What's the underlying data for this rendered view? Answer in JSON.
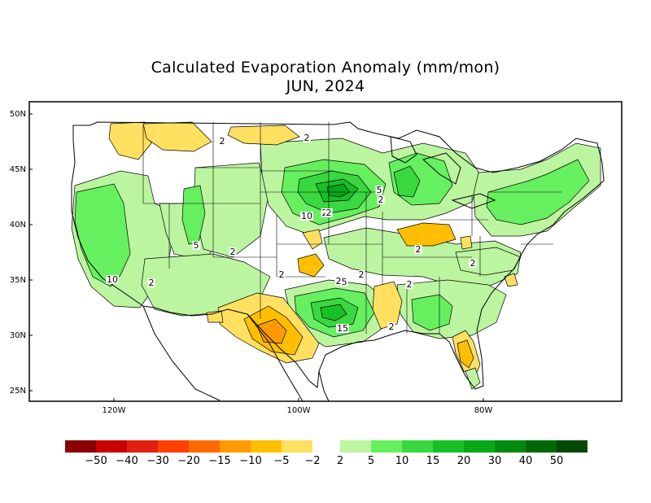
{
  "title": {
    "line1": "Calculated Evaporation Anomaly (mm/mon)",
    "line2": "JUN, 2024"
  },
  "map": {
    "lat_labels": [
      "50N",
      "45N",
      "40N",
      "35N",
      "30N",
      "25N"
    ],
    "lon_labels": [
      "120W",
      "100W",
      "80W"
    ],
    "contour_labels": [
      "2",
      "2",
      "5",
      "2",
      "10",
      "2",
      "5",
      "2",
      "2",
      "10",
      "2",
      "2",
      "2",
      "5",
      "2",
      "15",
      "2",
      "2",
      "2",
      "2",
      "5"
    ]
  },
  "colorbar": {
    "negative": {
      "colors": [
        "#8b0000",
        "#c80000",
        "#e02010",
        "#ff4000",
        "#ff6a00",
        "#ff9a00",
        "#ffbf00",
        "#ffe060"
      ],
      "labels": [
        "−50",
        "−40",
        "−30",
        "−20",
        "−15",
        "−10",
        "−5",
        "−2"
      ]
    },
    "positive": {
      "colors": [
        "#bcf5a0",
        "#66f060",
        "#3ad840",
        "#18c028",
        "#08a818",
        "#028a10",
        "#016808",
        "#004a06"
      ],
      "labels": [
        "2",
        "5",
        "10",
        "15",
        "20",
        "30",
        "40",
        "50"
      ]
    }
  },
  "fill_colors": {
    "pos2": "#bcf5a0",
    "pos5": "#66f060",
    "pos10": "#3ad840",
    "pos15": "#18c028",
    "pos20": "#08a818",
    "neg2": "#ffe060",
    "neg5": "#ffbf00",
    "neg10": "#ff9a00"
  }
}
